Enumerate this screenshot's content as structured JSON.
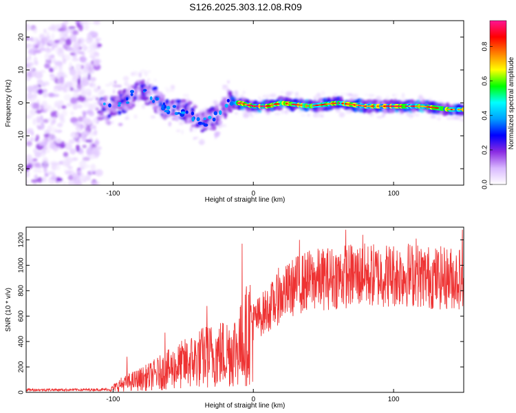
{
  "title": "S126.2025.303.12.08.R09",
  "chart_data": [
    {
      "type": "heatmap",
      "title": "S126.2025.303.12.08.R09",
      "xlabel": "Height of straight line (km)",
      "ylabel": "Frequency (Hz)",
      "xlim": [
        -162,
        150
      ],
      "ylim": [
        -25,
        25
      ],
      "xticks": [
        "-100",
        "0",
        "100"
      ],
      "yticks": [
        "20",
        "10",
        "0",
        "-10",
        "-20"
      ],
      "colorbar": {
        "label": "Normalized spectral amplitude",
        "ticks": [
          "0.0",
          "0.2",
          "0.4",
          "0.6",
          "0.8"
        ],
        "range": [
          0,
          0.95
        ],
        "colors": [
          "#ffffff",
          "#d9b8ff",
          "#8a2be2",
          "#0000ff",
          "#00a0ff",
          "#00ffff",
          "#00ff00",
          "#ffff00",
          "#ff8000",
          "#ff0000",
          "#ff1493"
        ]
      },
      "ridge": [
        {
          "x": -110,
          "f": -2
        },
        {
          "x": -100,
          "f": -1
        },
        {
          "x": -90,
          "f": 1
        },
        {
          "x": -80,
          "f": 4
        },
        {
          "x": -72,
          "f": 2
        },
        {
          "x": -65,
          "f": -1
        },
        {
          "x": -55,
          "f": -2
        },
        {
          "x": -45,
          "f": -3
        },
        {
          "x": -35,
          "f": -6
        },
        {
          "x": -25,
          "f": -4
        },
        {
          "x": -18,
          "f": 0
        },
        {
          "x": -10,
          "f": 0
        },
        {
          "x": 0,
          "f": -1
        },
        {
          "x": 10,
          "f": -1
        },
        {
          "x": 20,
          "f": 0
        },
        {
          "x": 40,
          "f": -1
        },
        {
          "x": 60,
          "f": 0
        },
        {
          "x": 80,
          "f": -1
        },
        {
          "x": 100,
          "f": -1
        },
        {
          "x": 120,
          "f": -1
        },
        {
          "x": 140,
          "f": -2
        },
        {
          "x": 150,
          "f": -2
        }
      ],
      "noise_region_x": [
        -162,
        -110
      ]
    },
    {
      "type": "line",
      "xlabel": "Height of straight line (km)",
      "ylabel": "SNR (10 * v/v)",
      "xlim": [
        -162,
        150
      ],
      "ylim": [
        0,
        1300
      ],
      "xticks": [
        "-100",
        "0",
        "100"
      ],
      "yticks": [
        "0",
        "200",
        "400",
        "600",
        "800",
        "1000",
        "1200"
      ],
      "color": "#ee3333",
      "series": [
        {
          "name": "SNR",
          "trend": [
            {
              "x": -162,
              "y": 20
            },
            {
              "x": -130,
              "y": 20
            },
            {
              "x": -102,
              "y": 22
            },
            {
              "x": -95,
              "y": 60
            },
            {
              "x": -85,
              "y": 90
            },
            {
              "x": -75,
              "y": 120
            },
            {
              "x": -65,
              "y": 160
            },
            {
              "x": -55,
              "y": 200
            },
            {
              "x": -45,
              "y": 240
            },
            {
              "x": -35,
              "y": 280
            },
            {
              "x": -25,
              "y": 300
            },
            {
              "x": -15,
              "y": 330
            },
            {
              "x": -8,
              "y": 380
            },
            {
              "x": 0,
              "y": 560
            },
            {
              "x": 10,
              "y": 650
            },
            {
              "x": 20,
              "y": 760
            },
            {
              "x": 30,
              "y": 840
            },
            {
              "x": 40,
              "y": 880
            },
            {
              "x": 55,
              "y": 900
            },
            {
              "x": 70,
              "y": 920
            },
            {
              "x": 90,
              "y": 920
            },
            {
              "x": 110,
              "y": 930
            },
            {
              "x": 130,
              "y": 900
            },
            {
              "x": 150,
              "y": 900
            }
          ],
          "peaks": [
            {
              "x": -90,
              "y": 280
            },
            {
              "x": -63,
              "y": 470
            },
            {
              "x": -33,
              "y": 680
            },
            {
              "x": -8,
              "y": 1170
            },
            {
              "x": 18,
              "y": 980
            },
            {
              "x": 33,
              "y": 1200
            },
            {
              "x": 66,
              "y": 1280
            },
            {
              "x": 78,
              "y": 1240
            },
            {
              "x": 116,
              "y": 1210
            },
            {
              "x": 149,
              "y": 1280
            }
          ]
        }
      ]
    }
  ]
}
